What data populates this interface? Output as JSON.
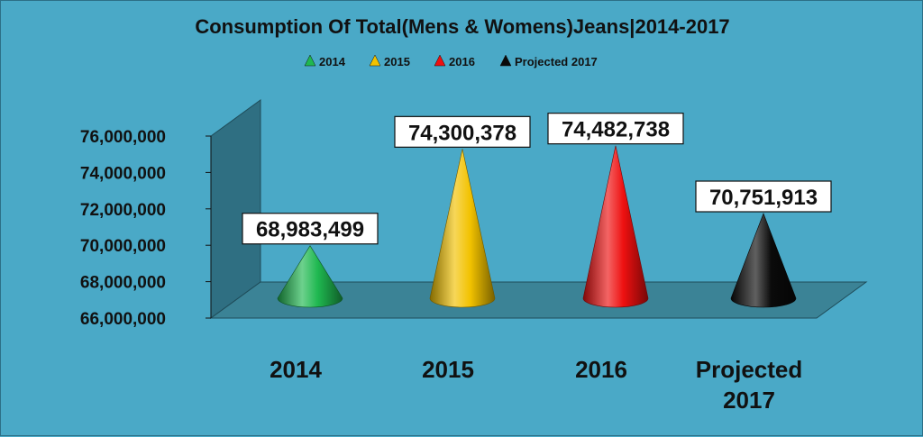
{
  "chart_data": {
    "type": "bar",
    "style": "3d-cone",
    "title": "Consumption Of Total(Mens & Womens)Jeans|2014-2017",
    "categories": [
      "2014",
      "2015",
      "2016",
      "Projected 2017"
    ],
    "values": [
      68983499,
      74300378,
      74482738,
      70751913
    ],
    "data_labels": [
      "68,983,499",
      "74,300,378",
      "74,482,738",
      "70,751,913"
    ],
    "colors": [
      "#1fb850",
      "#f2c200",
      "#ee1010",
      "#0a0a0a"
    ],
    "legend": [
      "2014",
      "2015",
      "2016",
      "Projected 2017"
    ],
    "legend_position": "top",
    "ylim": [
      66000000,
      76000000
    ],
    "yticks": [
      "66,000,000",
      "68,000,000",
      "70,000,000",
      "72,000,000",
      "74,000,000",
      "76,000,000"
    ],
    "ytick_values": [
      66000000,
      68000000,
      70000000,
      72000000,
      74000000,
      76000000
    ],
    "grid": false,
    "xlabel": "",
    "ylabel": "",
    "background": "#4aa9c7"
  }
}
